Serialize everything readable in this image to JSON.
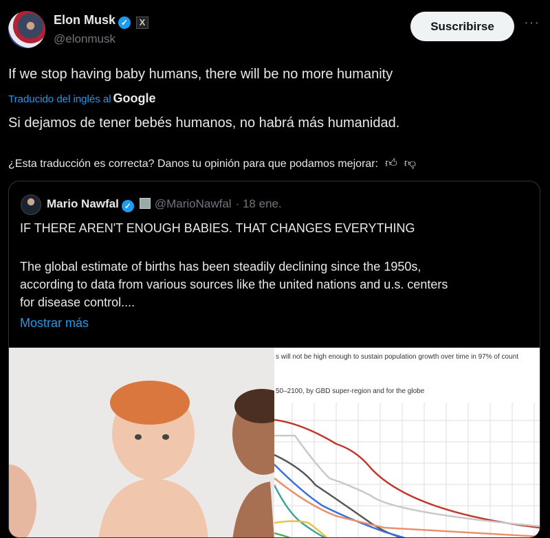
{
  "author": {
    "name": "Elon Musk",
    "handle": "@elonmusk",
    "verified": true,
    "badge_icon": "x-logo-icon"
  },
  "actions": {
    "subscribe_label": "Suscribirse",
    "more_label": "···"
  },
  "tweet": {
    "text": "If we stop having baby humans, there will be no more humanity",
    "translated_label": "Traducido del inglés al",
    "translator": "Google",
    "translation": "Si dejamos de tener bebés humanos, no habrá más humanidad.",
    "feedback": "¿Esta traducción es correcta? Danos tu opinión para que podamos mejorar:"
  },
  "quote": {
    "name": "Mario Nawfal",
    "handle": "@MarioNawfal",
    "date": "· 18 ene.",
    "headline": "IF THERE AREN'T ENOUGH BABIES. THAT CHANGES EVERYTHING",
    "body_lines": [
      "The global estimate of births has been steadily declining since the 1950s,",
      "according to data from various sources like the united nations and u.s. centers",
      "for disease control...."
    ],
    "show_more": "Mostrar más",
    "media": {
      "chart_caption_1": "s will not be high enough to sustain population growth over time in 97% of count",
      "chart_caption_2": "50–2100, by GBD super-region and for the globe",
      "series_colors": [
        "#c0392b",
        "#c8c8c8",
        "#555555",
        "#3a6fd8",
        "#e8916a",
        "#3aa59a",
        "#e8c04a",
        "#4caf50"
      ]
    }
  },
  "colors": {
    "background": "#000000",
    "link": "#1d9bf0",
    "verified": "#1d9bf0",
    "border": "#2f3336"
  }
}
